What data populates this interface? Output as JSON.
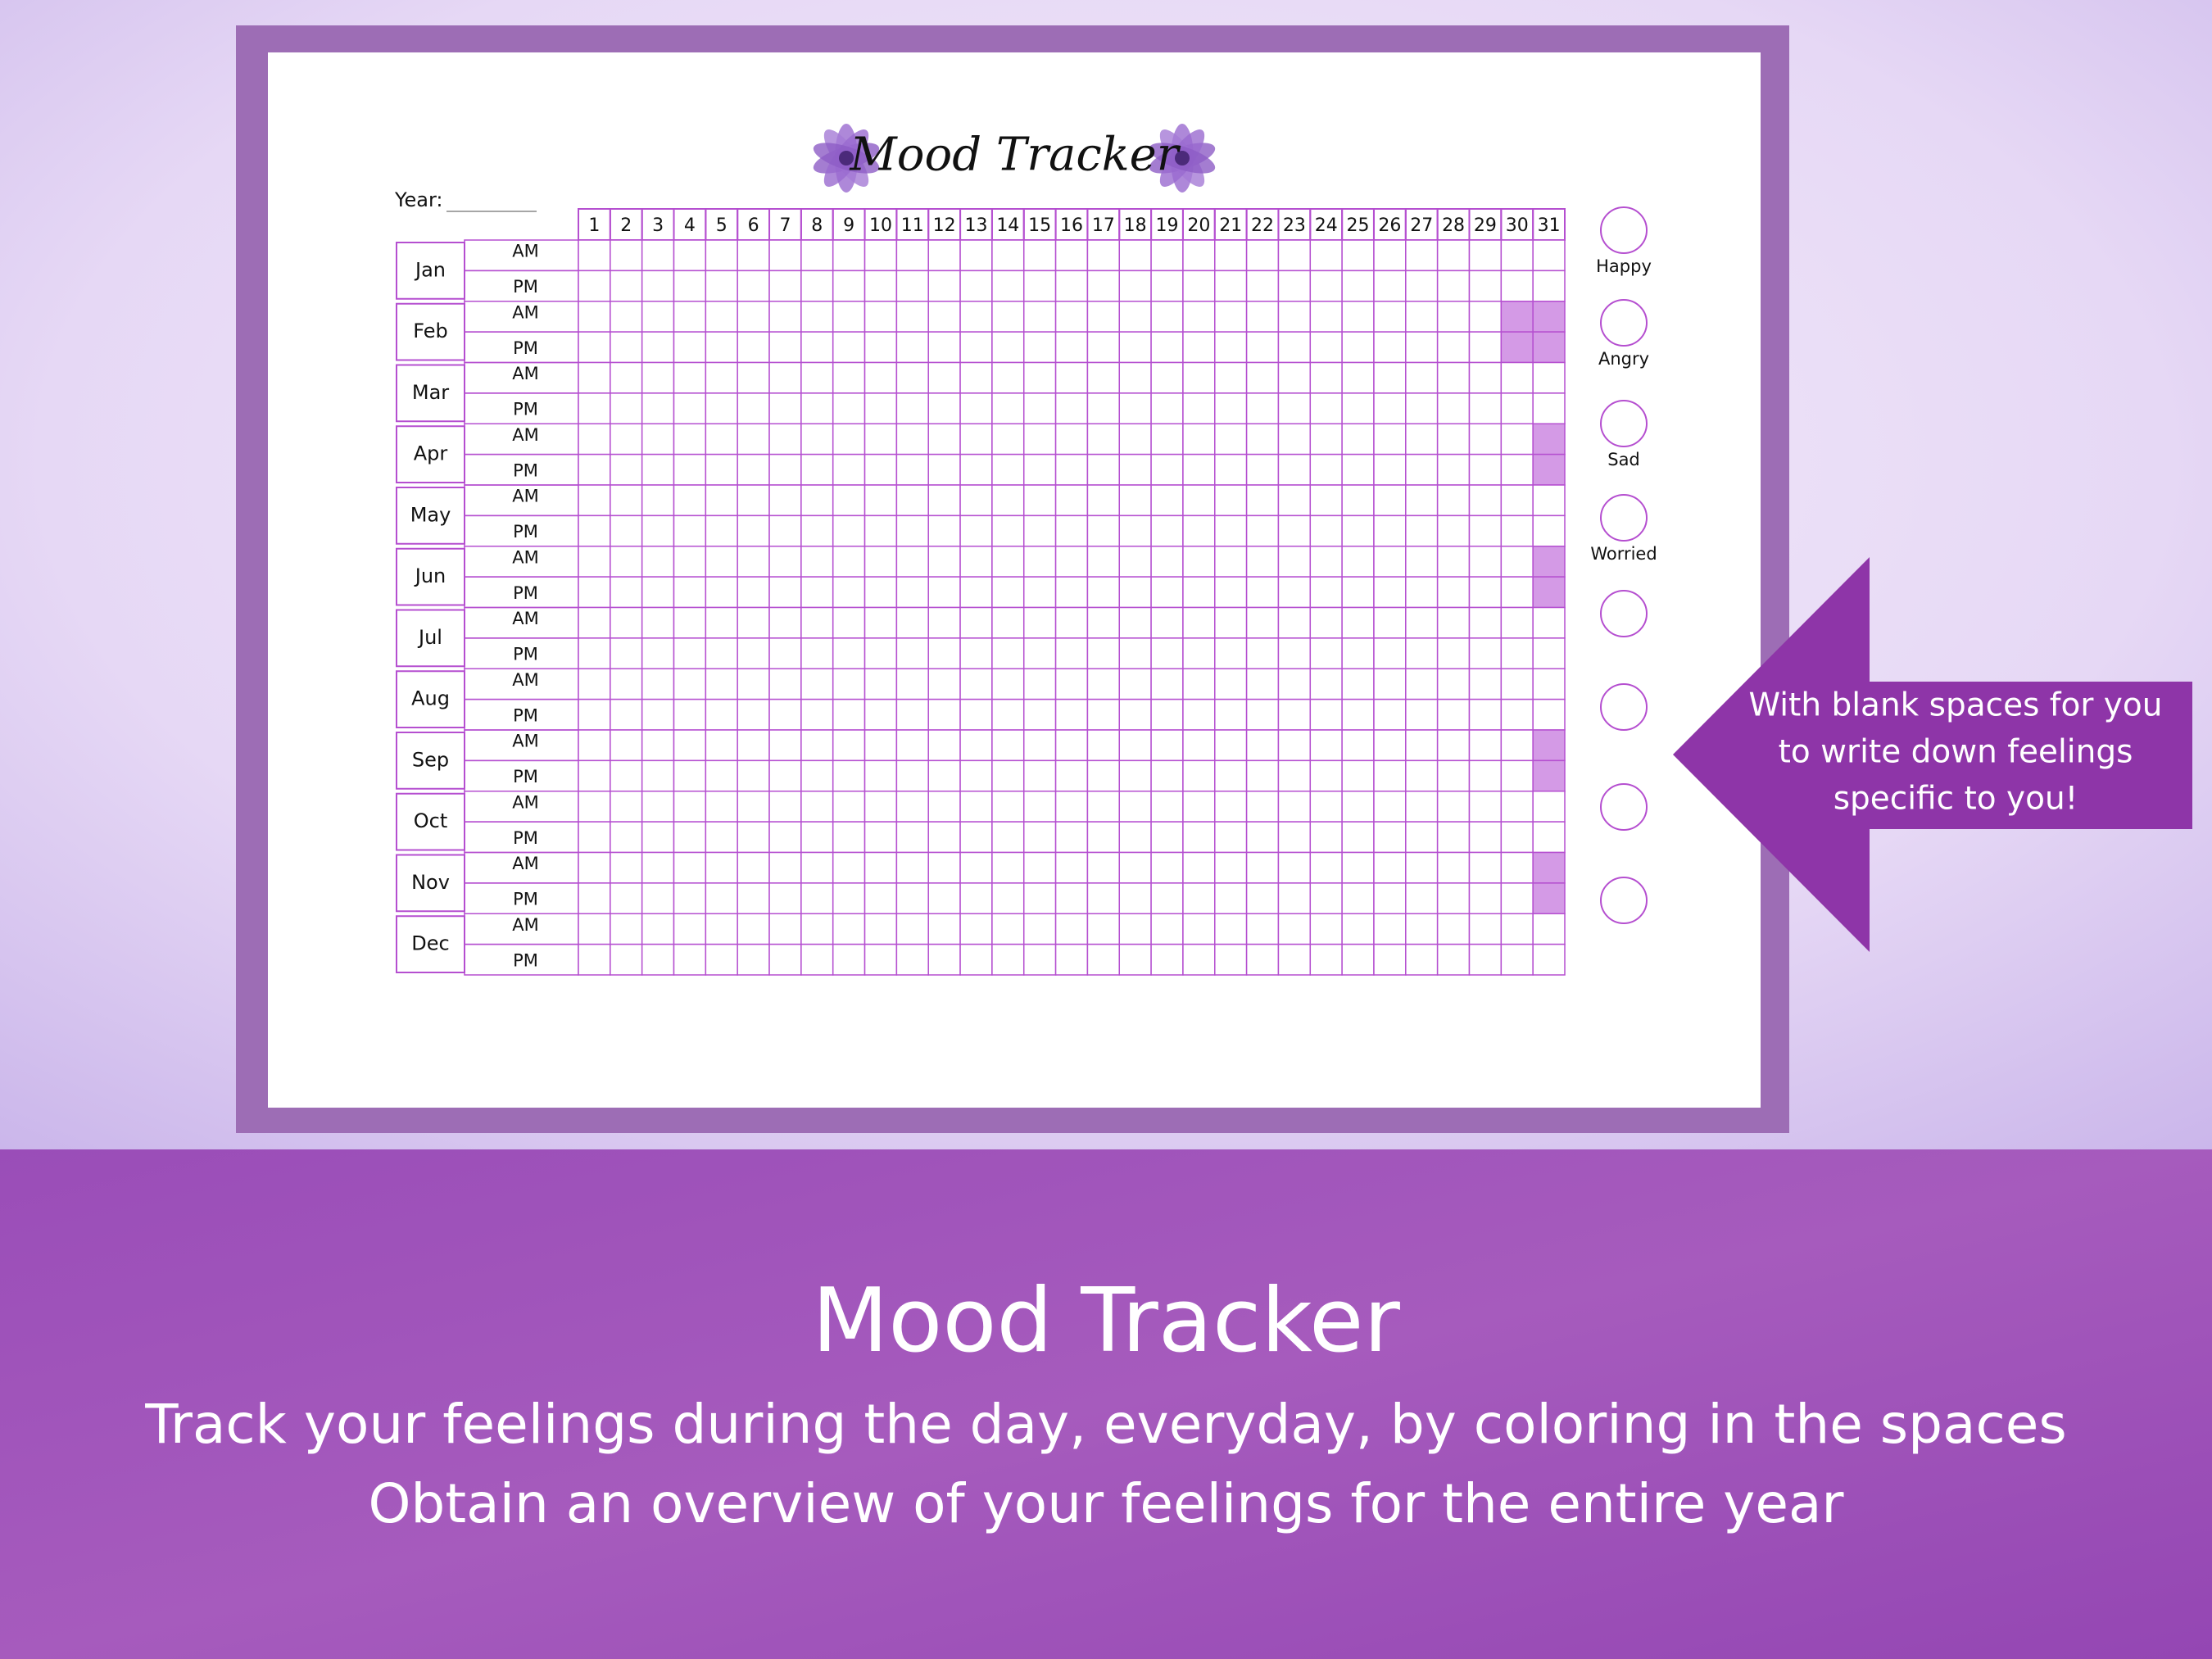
{
  "sheet": {
    "title": "Mood Tracker",
    "year_label": "Year:",
    "days": [
      1,
      2,
      3,
      4,
      5,
      6,
      7,
      8,
      9,
      10,
      11,
      12,
      13,
      14,
      15,
      16,
      17,
      18,
      19,
      20,
      21,
      22,
      23,
      24,
      25,
      26,
      27,
      28,
      29,
      30,
      31
    ],
    "months": [
      {
        "name": "Jan",
        "slots": [
          "AM",
          "PM"
        ]
      },
      {
        "name": "Feb",
        "slots": [
          "AM",
          "PM"
        ]
      },
      {
        "name": "Mar",
        "slots": [
          "AM",
          "PM"
        ]
      },
      {
        "name": "Apr",
        "slots": [
          "AM",
          "PM"
        ]
      },
      {
        "name": "May",
        "slots": [
          "AM",
          "PM"
        ]
      },
      {
        "name": "Jun",
        "slots": [
          "AM",
          "PM"
        ]
      },
      {
        "name": "Jul",
        "slots": [
          "AM",
          "PM"
        ]
      },
      {
        "name": "Aug",
        "slots": [
          "AM",
          "PM"
        ]
      },
      {
        "name": "Sep",
        "slots": [
          "AM",
          "PM"
        ]
      },
      {
        "name": "Oct",
        "slots": [
          "AM",
          "PM"
        ]
      },
      {
        "name": "Nov",
        "slots": [
          "AM",
          "PM"
        ]
      },
      {
        "name": "Dec",
        "slots": [
          "AM",
          "PM"
        ]
      }
    ],
    "moods": [
      "Happy",
      "Angry",
      "Sad",
      "Worried"
    ]
  },
  "callout": {
    "lines": [
      "With blank spaces for you",
      "to write down feelings",
      "specific to you!"
    ]
  },
  "banner": {
    "title": "Mood Tracker",
    "lines": [
      "Track your feelings during the day, everyday, by coloring in the spaces",
      "Obtain an overview of your feelings for the entire year"
    ]
  }
}
